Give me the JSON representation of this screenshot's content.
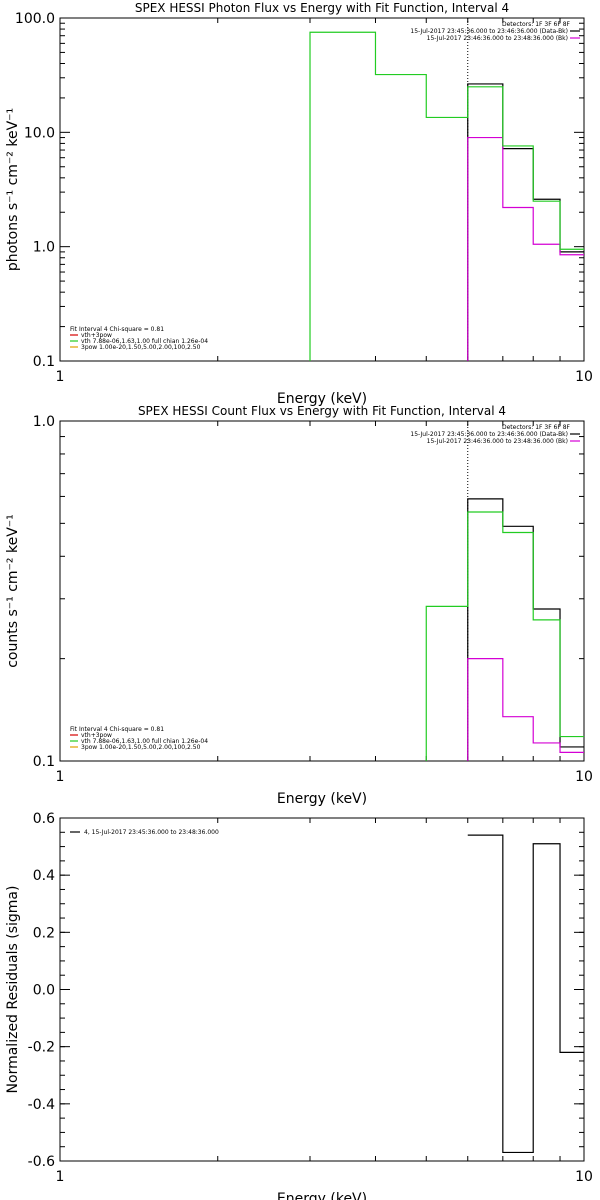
{
  "chart_data": [
    {
      "type": "line",
      "panel": "photon",
      "title": "SPEX HESSI Photon Flux vs Energy with Fit Function, Interval 4",
      "xlabel": "Energy (keV)",
      "ylabel": "photons s⁻¹ cm⁻² keV⁻¹",
      "xscale": "log",
      "yscale": "log",
      "xlim": [
        1,
        10
      ],
      "ylim": [
        0.1,
        100
      ],
      "xticks": [
        {
          "v": 1,
          "label": "1"
        },
        {
          "v": 10,
          "label": "10"
        }
      ],
      "yticks": [
        {
          "v": 0.1,
          "label": "0.1"
        },
        {
          "v": 1,
          "label": "1.0"
        },
        {
          "v": 10,
          "label": "10.0"
        },
        {
          "v": 100,
          "label": "100.0"
        }
      ],
      "vline": 6,
      "edges": [
        3.0,
        4.0,
        5.0,
        6.0,
        7.0,
        8.0,
        9.0,
        10.0
      ],
      "series": [
        {
          "name": "15-Jul-2017 23:45:36.000 to 23:46:36.000 (Data-Bk)",
          "color": "#000000",
          "values": [
            null,
            null,
            null,
            26.5,
            7.2,
            2.6,
            0.9
          ]
        },
        {
          "name": "15-Jul-2017 23:46:36.000 to 23:48:36.000 (Bk)",
          "color": "#d400d4",
          "values": [
            null,
            null,
            null,
            9.0,
            2.2,
            1.05,
            0.85
          ]
        },
        {
          "name": "vth 7.88e-06,1.63,1.00 full chian 1.26e-04",
          "color": "#22cc22",
          "values": [
            75,
            32,
            13.5,
            25,
            7.6,
            2.5,
            0.95
          ]
        }
      ],
      "legend_top": {
        "header": "Detectors: 1F 3F 6F 8F",
        "lines": [
          {
            "text": "15-Jul-2017 23:45:36.000 to 23:46:36.000 (Data-Bk)",
            "color": "#000000"
          },
          {
            "text": "15-Jul-2017 23:46:36.000 to 23:48:36.000 (Bk)",
            "color": "#d400d4"
          }
        ]
      },
      "legend_bottom": {
        "header": "Fit Interval 4   Chi-square = 0.81",
        "lines": [
          {
            "text": "vth+3pow",
            "color": "#d40000"
          },
          {
            "text": "vth 7.88e-06,1.63,1.00  full chian 1.26e-04",
            "color": "#22cc22"
          },
          {
            "text": "3pow 1.00e-20,1.50,5.00,2.00,100,2.50",
            "color": "#e0a000"
          }
        ]
      }
    },
    {
      "type": "line",
      "panel": "count",
      "title": "SPEX HESSI Count Flux vs Energy with Fit Function, Interval 4",
      "xlabel": "Energy (keV)",
      "ylabel": "counts s⁻¹ cm⁻² keV⁻¹",
      "xscale": "log",
      "yscale": "log",
      "xlim": [
        1,
        10
      ],
      "ylim": [
        0.1,
        1.0
      ],
      "xticks": [
        {
          "v": 1,
          "label": "1"
        },
        {
          "v": 10,
          "label": "10"
        }
      ],
      "yticks": [
        {
          "v": 0.1,
          "label": "0.1"
        },
        {
          "v": 1,
          "label": "1.0"
        }
      ],
      "vline": 6,
      "edges": [
        5.0,
        6.0,
        7.0,
        8.0,
        9.0,
        10.0
      ],
      "series": [
        {
          "name": "15-Jul-2017 23:45:36.000 to 23:46:36.000 (Data-Bk)",
          "color": "#000000",
          "values": [
            null,
            0.59,
            0.49,
            0.28,
            0.11
          ]
        },
        {
          "name": "15-Jul-2017 23:46:36.000 to 23:48:36.000 (Bk)",
          "color": "#d400d4",
          "values": [
            null,
            0.2,
            0.135,
            0.113,
            0.106
          ]
        },
        {
          "name": "vth 7.88e-06,1.63,1.00 full chian 1.26e-04",
          "color": "#22cc22",
          "values": [
            0.285,
            0.54,
            0.47,
            0.26,
            0.118
          ]
        }
      ],
      "legend_top": {
        "header": "Detectors: 1F 3F 6F 8F",
        "lines": [
          {
            "text": "15-Jul-2017 23:45:36.000 to 23:46:36.000 (Data-Bk)",
            "color": "#000000"
          },
          {
            "text": "15-Jul-2017 23:46:36.000 to 23:48:36.000 (Bk)",
            "color": "#d400d4"
          }
        ]
      },
      "legend_bottom": {
        "header": "Fit Interval 4   Chi-square = 0.81",
        "lines": [
          {
            "text": "vth+3pow",
            "color": "#d40000"
          },
          {
            "text": "vth 7.88e-06,1.63,1.00  full chian 1.26e-04",
            "color": "#22cc22"
          },
          {
            "text": "3pow 1.00e-20,1.50,5.00,2.00,100,2.50",
            "color": "#e0a000"
          }
        ]
      }
    },
    {
      "type": "line",
      "panel": "residuals",
      "title": "",
      "xlabel": "Energy (keV)",
      "ylabel": "Normalized Residuals (sigma)",
      "xscale": "log",
      "yscale": "linear",
      "xlim": [
        1,
        10
      ],
      "ylim": [
        -0.6,
        0.6
      ],
      "xticks": [
        {
          "v": 1,
          "label": "1"
        },
        {
          "v": 10,
          "label": "10"
        }
      ],
      "yticks": [
        {
          "v": -0.6,
          "label": "-0.6"
        },
        {
          "v": -0.4,
          "label": "-0.4"
        },
        {
          "v": -0.2,
          "label": "-0.2"
        },
        {
          "v": 0.0,
          "label": "0.0"
        },
        {
          "v": 0.2,
          "label": "0.2"
        },
        {
          "v": 0.4,
          "label": "0.4"
        },
        {
          "v": 0.6,
          "label": "0.6"
        }
      ],
      "edges": [
        6.0,
        7.0,
        8.0,
        9.0,
        10.0
      ],
      "series": [
        {
          "name": "4, 15-Jul-2017 23:45:36.000 to 23:48:36.000",
          "color": "#000000",
          "values": [
            0.54,
            -0.57,
            0.51,
            -0.22
          ]
        }
      ],
      "legend_top": {
        "header": "",
        "lines": [
          {
            "text": "4, 15-Jul-2017 23:45:36.000 to 23:48:36.000",
            "color": "#000000"
          }
        ]
      }
    }
  ]
}
